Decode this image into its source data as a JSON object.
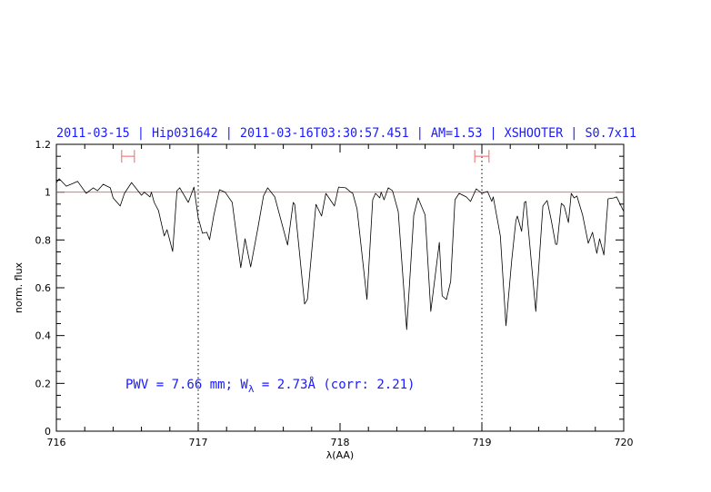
{
  "chart_data": {
    "type": "line",
    "title": "2011-03-15 | Hip031642 | 2011-03-16T03:30:57.451 | AM=1.53 | XSHOOTER | S0.7x11",
    "xlabel": "λ(AA)",
    "ylabel": "norm. flux",
    "xlim": [
      716,
      720
    ],
    "ylim": [
      0,
      1.2
    ],
    "xticks": [
      "716",
      "717",
      "718",
      "719",
      "720"
    ],
    "yticks": [
      "0",
      "0.2",
      "0.4",
      "0.6",
      "0.8",
      "1",
      "1.2"
    ],
    "grid": false,
    "reference_line_y": 1,
    "vertical_dotted_lines_x": [
      717,
      719
    ],
    "interval_markers": [
      {
        "x": [
          716.46,
          716.55
        ],
        "y": 1.15
      },
      {
        "x": [
          718.95,
          719.05
        ],
        "y": 1.15
      }
    ],
    "annotation": {
      "pwv": "PWV = 7.66 mm; W",
      "sub": "λ",
      "rest": " = 2.73Å (corr: 2.21)"
    },
    "colors": {
      "spectrum": "#000000",
      "reference_line": "#e06060",
      "markers": "#f08080",
      "text": "#1a1aff"
    },
    "series": [
      {
        "x": [
          716.0,
          716.02,
          716.07,
          716.12,
          716.15,
          716.21,
          716.26,
          716.29,
          716.33,
          716.38,
          716.4,
          716.45,
          716.48,
          716.53,
          716.6,
          716.62,
          716.66,
          716.67,
          716.69,
          716.72,
          716.76,
          716.78,
          716.82,
          716.85,
          716.87,
          716.93,
          716.97,
          717.0,
          717.03,
          717.06,
          717.08,
          717.11,
          717.15,
          717.19,
          717.24,
          717.3,
          717.33,
          717.37,
          717.42,
          717.46,
          717.49,
          717.54,
          717.63,
          717.67,
          717.68,
          717.75,
          717.77,
          717.83,
          717.87,
          717.9,
          717.96,
          717.99,
          718.04,
          718.07,
          718.09,
          718.12,
          718.19,
          718.23,
          718.25,
          718.28,
          718.29,
          718.31,
          718.34,
          718.37,
          718.41,
          718.47,
          718.52,
          718.55,
          718.6,
          718.64,
          718.7,
          718.72,
          718.75,
          718.78,
          718.81,
          718.84,
          718.89,
          718.92,
          718.96,
          719.0,
          719.04,
          719.07,
          719.08,
          719.13,
          719.17,
          719.21,
          719.24,
          719.25,
          719.28,
          719.3,
          719.31,
          719.38,
          719.43,
          719.46,
          719.49,
          719.52,
          719.53,
          719.56,
          719.58,
          719.61,
          719.63,
          719.65,
          719.67,
          719.71,
          719.75,
          719.78,
          719.81,
          719.83,
          719.86,
          719.89,
          719.93,
          719.95,
          720.0
        ],
        "y": [
          1.04,
          1.056,
          1.025,
          1.037,
          1.045,
          0.995,
          1.018,
          1.006,
          1.033,
          1.018,
          0.976,
          0.942,
          0.995,
          1.04,
          0.987,
          1.0,
          0.98,
          1.0,
          0.957,
          0.923,
          0.817,
          0.843,
          0.752,
          1.006,
          1.018,
          0.957,
          1.021,
          0.893,
          0.828,
          0.832,
          0.801,
          0.904,
          1.01,
          1.0,
          0.957,
          0.684,
          0.805,
          0.687,
          0.847,
          0.984,
          1.018,
          0.98,
          0.779,
          0.957,
          0.949,
          0.532,
          0.551,
          0.949,
          0.9,
          0.995,
          0.942,
          1.021,
          1.018,
          1.003,
          0.995,
          0.93,
          0.551,
          0.968,
          0.995,
          0.976,
          1.0,
          0.968,
          1.018,
          1.006,
          0.919,
          0.425,
          0.904,
          0.976,
          0.904,
          0.501,
          0.79,
          0.566,
          0.551,
          0.627,
          0.968,
          0.995,
          0.98,
          0.961,
          1.014,
          0.995,
          1.003,
          0.961,
          0.98,
          0.817,
          0.441,
          0.714,
          0.881,
          0.9,
          0.836,
          0.957,
          0.961,
          0.501,
          0.942,
          0.965,
          0.881,
          0.782,
          0.782,
          0.953,
          0.942,
          0.873,
          0.995,
          0.976,
          0.984,
          0.904,
          0.786,
          0.832,
          0.744,
          0.805,
          0.737,
          0.972,
          0.976,
          0.98,
          0.919
        ]
      }
    ]
  }
}
